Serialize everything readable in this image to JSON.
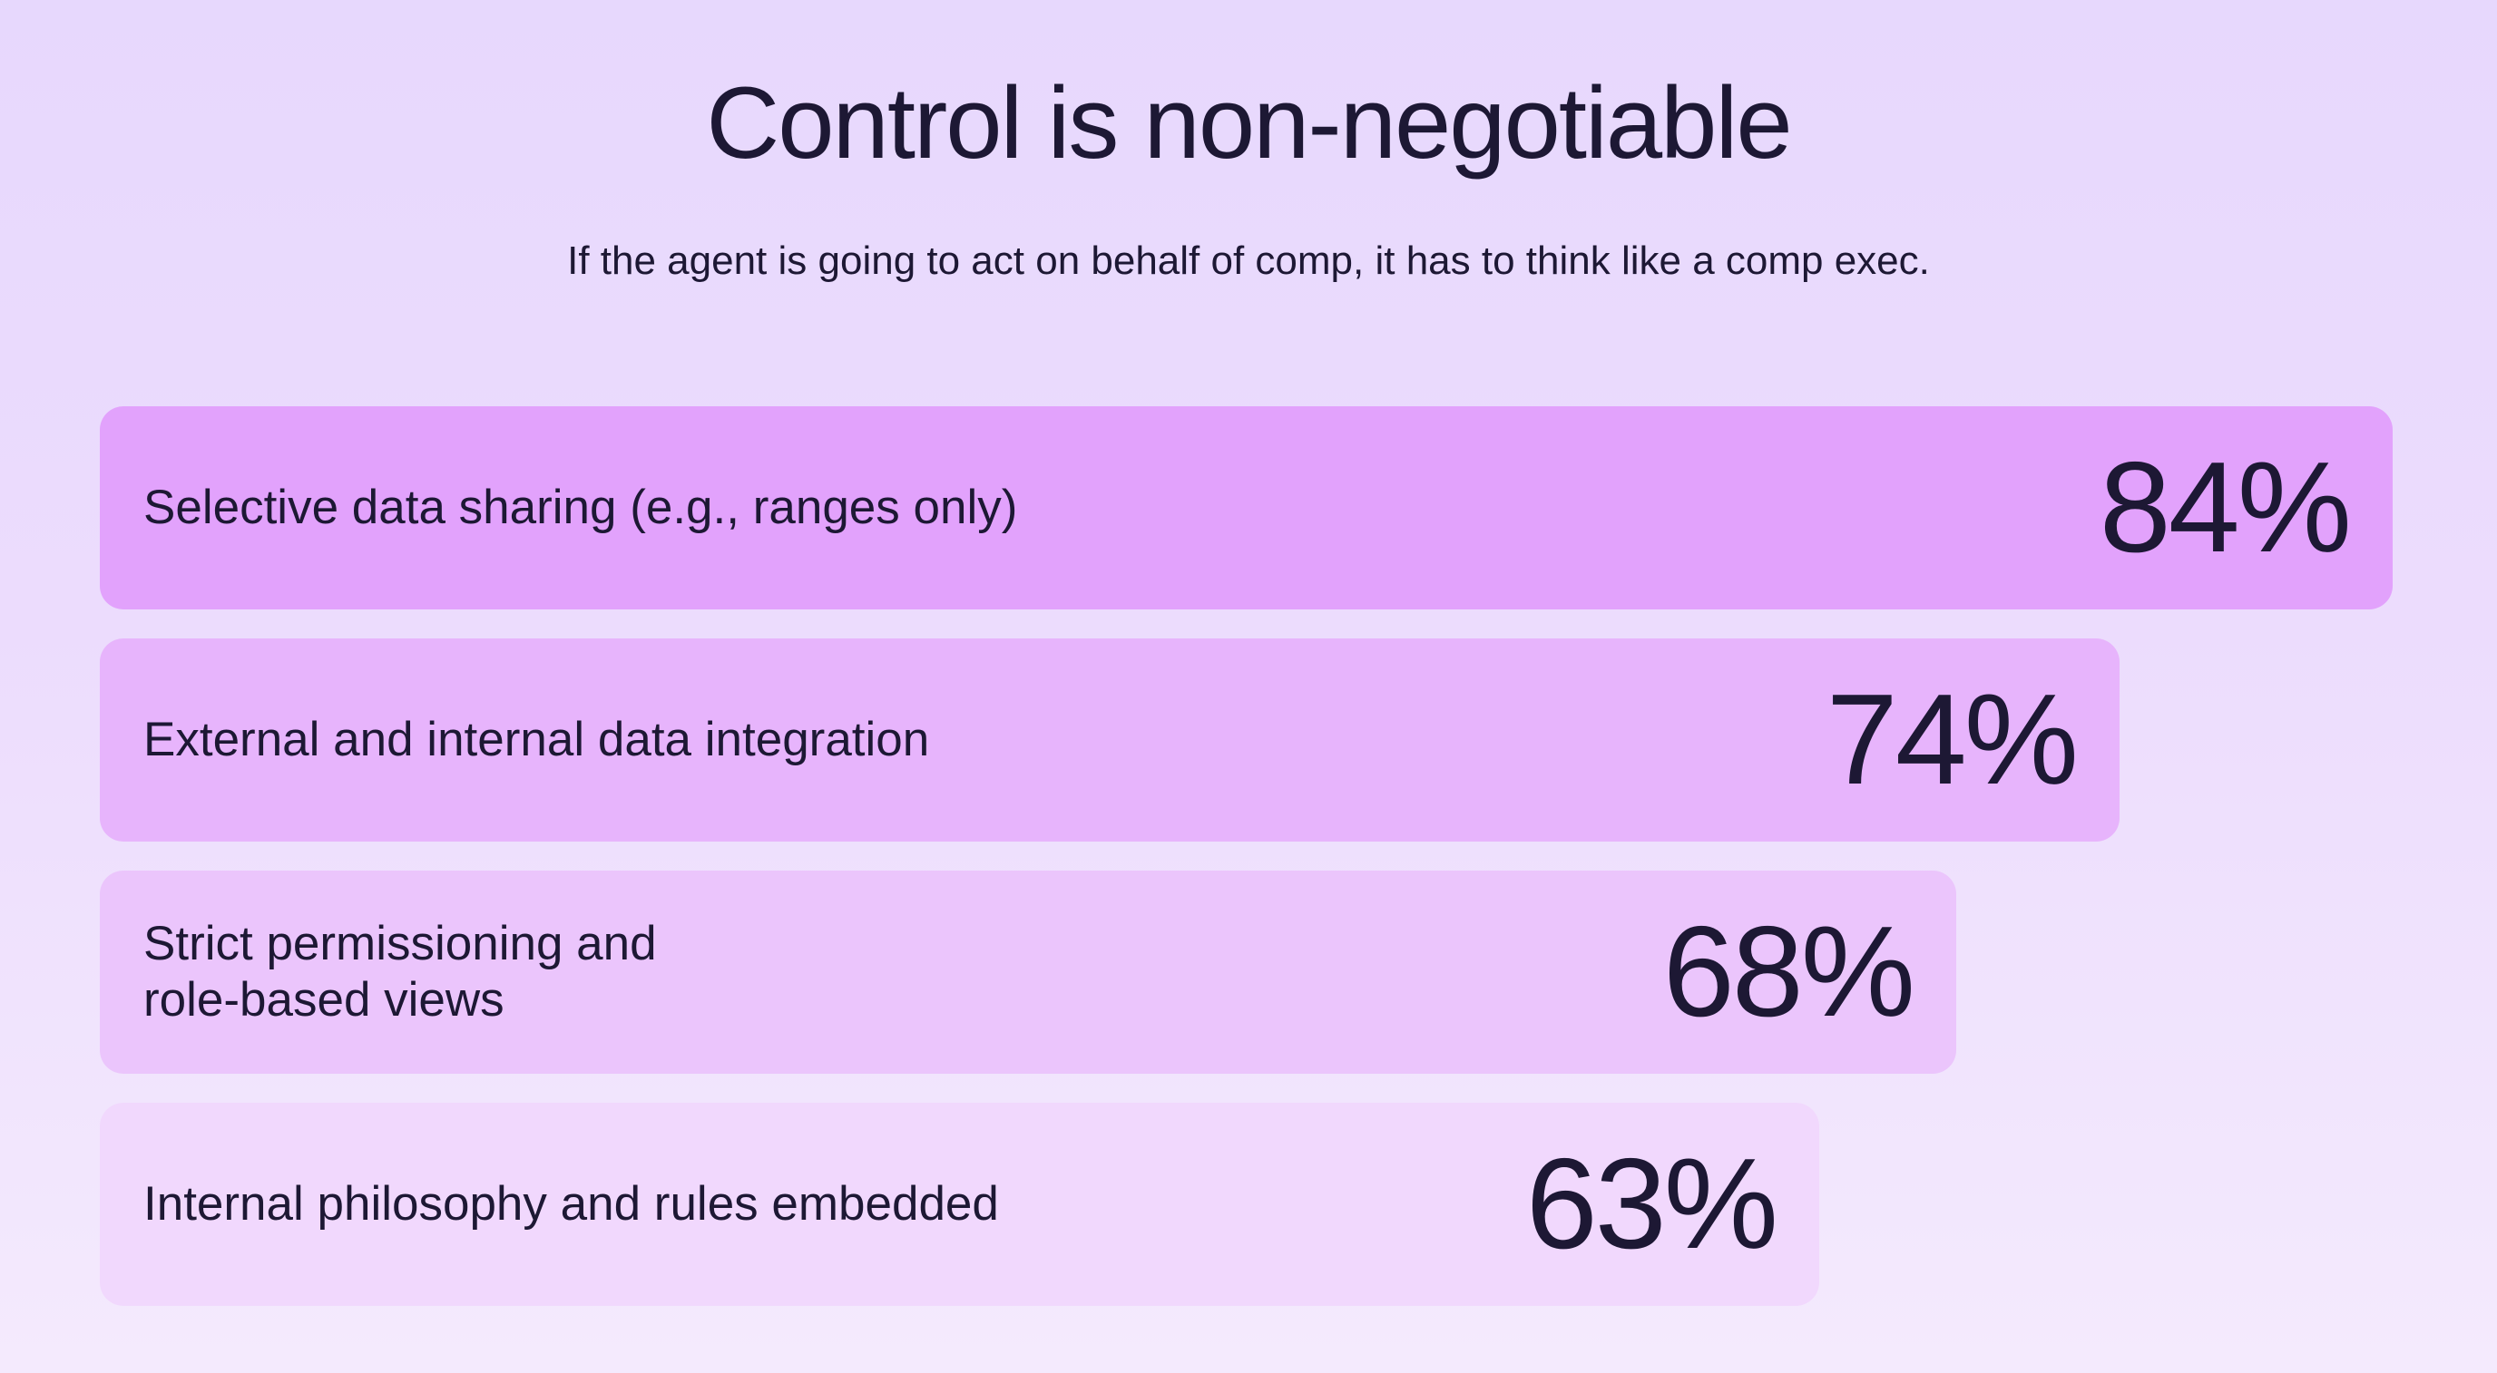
{
  "header": {
    "title": "Control is non-negotiable",
    "subtitle": "If the agent is going to act on behalf of comp, it has to think like a comp exec."
  },
  "chart_data": {
    "type": "bar",
    "orientation": "horizontal",
    "title": "Control is non-negotiable",
    "subtitle": "If the agent is going to act on behalf of comp, it has to think like a comp exec.",
    "categories": [
      "Selective data sharing (e.g., ranges only)",
      "External and internal data integration",
      "Strict permissioning and\nrole-based views",
      "Internal philosophy and rules embedded"
    ],
    "values": [
      84,
      74,
      68,
      63
    ],
    "value_labels": [
      "84%",
      "74%",
      "68%",
      "63%"
    ],
    "unit": "%",
    "grid": false,
    "legend": "none",
    "colors": [
      "#e2a2fc",
      "#e7b4fc",
      "#ebc5fc",
      "#f1d8fd"
    ]
  }
}
